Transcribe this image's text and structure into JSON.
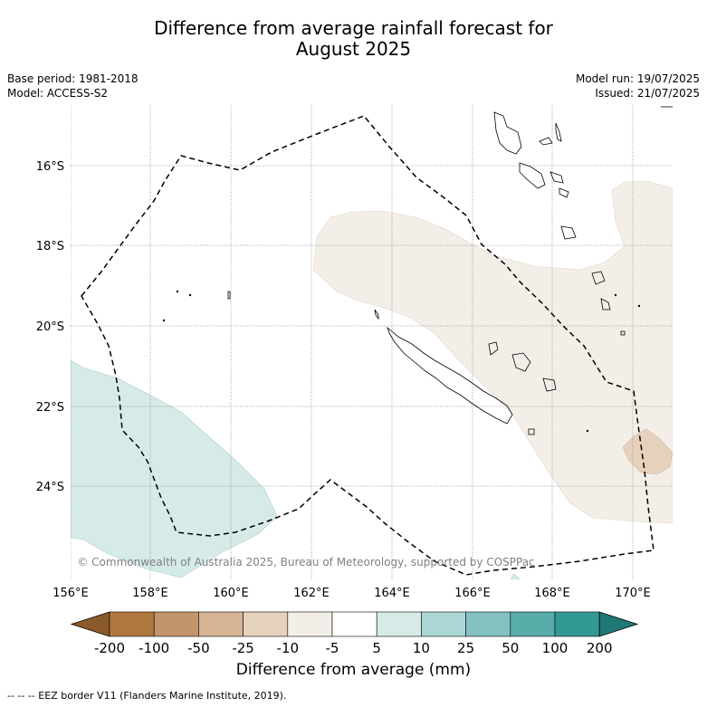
{
  "title_line1": "Difference from average rainfall forecast for",
  "title_line2": "August 2025",
  "base_period": "Base period: 1981-2018",
  "model": "Model: ACCESS-S2",
  "model_run": "Model run: 19/07/2025",
  "issued": "Issued: 21/07/2025",
  "copyright": "© Commonwealth of Australia 2025, Bureau of Meteorology, supported by COSPPac",
  "lat_labels": [
    "16°S",
    "18°S",
    "20°S",
    "22°S",
    "24°S"
  ],
  "lon_labels": [
    "156°E",
    "158°E",
    "160°E",
    "162°E",
    "164°E",
    "166°E",
    "168°E",
    "170°E"
  ],
  "colorbar": {
    "title": "Difference from average (mm)",
    "tick_labels": [
      "-200",
      "-100",
      "-50",
      "-25",
      "-10",
      "-5",
      "5",
      "10",
      "25",
      "50",
      "100",
      "200"
    ],
    "colors": [
      "#8a5a2a",
      "#b07840",
      "#c4956a",
      "#d6b393",
      "#e6d1bd",
      "#f3efe8",
      "#ffffff",
      "#d6ebe8",
      "#acd6d4",
      "#84c2c0",
      "#58acaa",
      "#329995",
      "#1e7874"
    ]
  },
  "legend_footer": "--  --  -- EEZ border V11 (Flanders Marine Institute, 2019)."
}
